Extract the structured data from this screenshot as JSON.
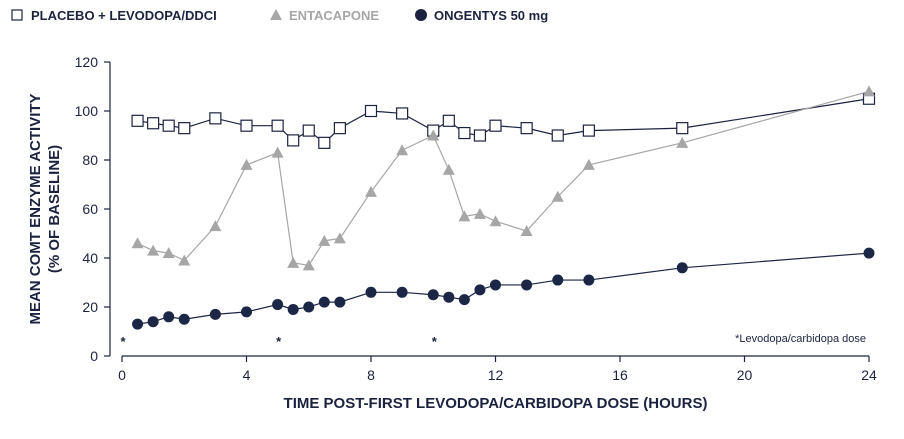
{
  "chart_data": {
    "type": "line",
    "xlabel": "TIME POST-FIRST LEVODOPA/CARBIDOPA DOSE (HOURS)",
    "ylabel_line1": "MEAN COMT ENZYME ACTIVITY",
    "ylabel_line2": "(% OF BASELINE)",
    "xlim": [
      0,
      24
    ],
    "ylim": [
      0,
      120
    ],
    "xticks": [
      0,
      4,
      8,
      12,
      16,
      20,
      24
    ],
    "yticks": [
      0,
      20,
      40,
      60,
      80,
      100,
      120
    ],
    "grid": false,
    "legend_position": "top-left",
    "note": "*Levodopa/carbidopa dose",
    "dose_marker_symbol": "*",
    "dose_times": [
      0,
      5,
      10
    ],
    "series": [
      {
        "name": "PLACEBO + LEVODOPA/DDCI",
        "marker": "open-square",
        "color": "#1c2340",
        "legend_color": "#1c2340",
        "x": [
          0.5,
          1,
          1.5,
          2,
          3,
          4,
          5,
          5.5,
          6,
          6.5,
          7,
          8,
          9,
          10,
          10.5,
          11,
          11.5,
          12,
          13,
          14,
          15,
          18,
          24
        ],
        "y": [
          96,
          95,
          94,
          93,
          97,
          94,
          94,
          88,
          92,
          87,
          93,
          100,
          99,
          92,
          96,
          91,
          90,
          94,
          93,
          90,
          92,
          93,
          105
        ]
      },
      {
        "name": "ENTACAPONE",
        "marker": "triangle",
        "color": "#a6a6a6",
        "legend_color": "#a6a6a6",
        "x": [
          0.5,
          1,
          1.5,
          2,
          3,
          4,
          5,
          5.5,
          6,
          6.5,
          7,
          8,
          9,
          10,
          10.5,
          11,
          11.5,
          12,
          13,
          14,
          15,
          18,
          24
        ],
        "y": [
          46,
          43,
          42,
          39,
          53,
          78,
          83,
          38,
          37,
          47,
          48,
          67,
          84,
          90,
          76,
          57,
          58,
          55,
          51,
          65,
          78,
          87,
          108
        ]
      },
      {
        "name": "ONGENTYS 50 mg",
        "marker": "filled-circle",
        "color": "#1c2647",
        "legend_color": "#1c2340",
        "x": [
          0.5,
          1,
          1.5,
          2,
          3,
          4,
          5,
          5.5,
          6,
          6.5,
          7,
          8,
          9,
          10,
          10.5,
          11,
          11.5,
          12,
          13,
          14,
          15,
          18,
          24
        ],
        "y": [
          13,
          14,
          16,
          15,
          17,
          18,
          21,
          19,
          20,
          22,
          22,
          26,
          26,
          25,
          24,
          23,
          27,
          29,
          29,
          31,
          31,
          36,
          42
        ]
      }
    ]
  }
}
